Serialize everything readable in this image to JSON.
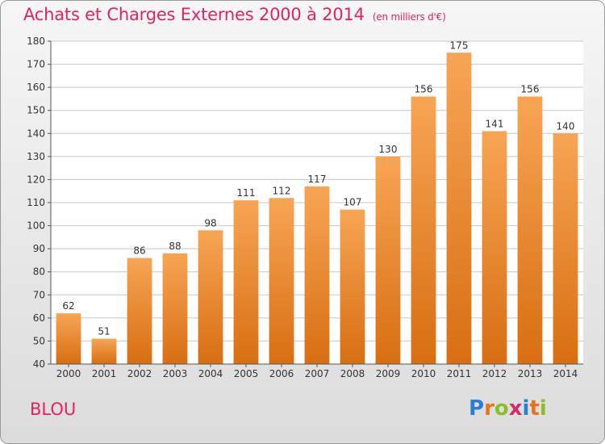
{
  "header": {
    "title": "Achats et Charges Externes 2000 à 2014",
    "unit": "(en milliers d'€)"
  },
  "footer": {
    "place": "BLOU",
    "logo_letters": [
      "P",
      "r",
      "o",
      "x",
      "i",
      "t",
      "i"
    ],
    "logo_colors": [
      "#2a7fd4",
      "#e8731a",
      "#8bbf2a",
      "#d42a66",
      "#2a7fd4",
      "#e8731a",
      "#8bbf2a"
    ]
  },
  "colors": {
    "bar_top": "#f7a555",
    "bar_bottom": "#d86e12",
    "accent": "#e2245e",
    "grid": "#c8c8c8"
  },
  "chart_data": {
    "type": "bar",
    "title": "Achats et Charges Externes 2000 à 2014",
    "subtitle": "(en milliers d'€)",
    "categories": [
      "2000",
      "2001",
      "2002",
      "2003",
      "2004",
      "2005",
      "2006",
      "2007",
      "2008",
      "2009",
      "2010",
      "2011",
      "2012",
      "2013",
      "2014"
    ],
    "values": [
      62,
      51,
      86,
      88,
      98,
      111,
      112,
      117,
      107,
      130,
      156,
      175,
      141,
      156,
      140
    ],
    "ylim": [
      40,
      180
    ],
    "yticks": [
      40,
      50,
      60,
      70,
      80,
      90,
      100,
      110,
      120,
      130,
      140,
      150,
      160,
      170,
      180
    ],
    "grid": true
  }
}
